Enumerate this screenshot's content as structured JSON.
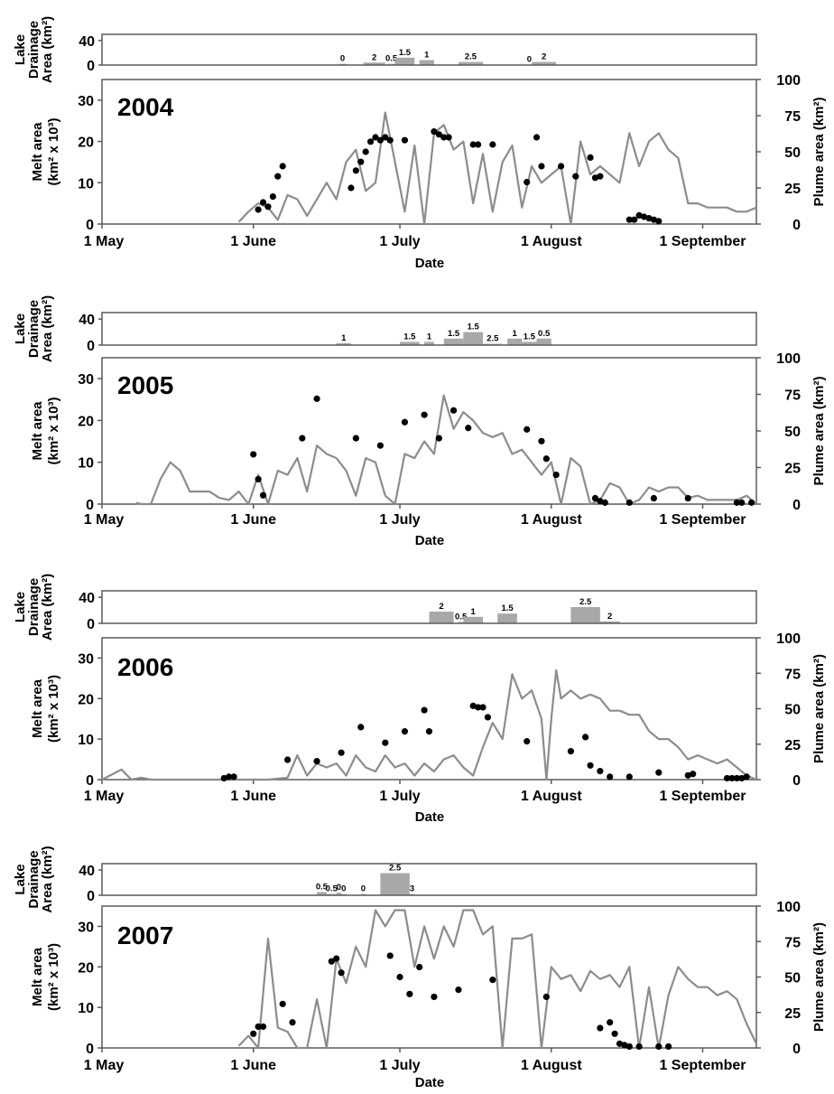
{
  "chart_data": [
    {
      "type": "line",
      "year_label": "2004",
      "xlabel": "Date",
      "ylabel_left": [
        "Melt area",
        "(km² x 10³)"
      ],
      "ylabel_right": "Plume area (km²)",
      "drainage_ylabel": [
        "Lake",
        "Drainage",
        "Area (km²)"
      ],
      "x_ticks": [
        "1 May",
        "1 June",
        "1 July",
        "1 August",
        "1 September"
      ],
      "ylim_left": [
        0,
        35
      ],
      "yticks_left": [
        0,
        10,
        20,
        30
      ],
      "ylim_right": [
        0,
        100
      ],
      "yticks_right": [
        0,
        25,
        50,
        75,
        100
      ],
      "drainage_ylim": [
        0,
        50
      ],
      "drainage_yticks": [
        0,
        40
      ],
      "melt_area": {
        "day": [
          28,
          30,
          32,
          34,
          36,
          38,
          40,
          42,
          44,
          46,
          48,
          50,
          52,
          54,
          56,
          58,
          60,
          62,
          64,
          66,
          68,
          70,
          72,
          74,
          76,
          78,
          80,
          82,
          84,
          86,
          88,
          90,
          92,
          94,
          96,
          98,
          100,
          102,
          104,
          106,
          108,
          110,
          112,
          114,
          116,
          118,
          120,
          122,
          124,
          126,
          128,
          130,
          132,
          134
        ],
        "value": [
          0.5,
          3,
          5,
          4,
          1,
          7,
          6,
          2,
          6,
          10,
          6,
          15,
          18,
          8,
          10,
          27,
          15,
          3,
          19,
          0,
          22,
          24,
          18,
          20,
          5,
          17,
          3,
          15,
          19,
          4,
          14,
          10,
          12,
          14,
          0,
          20,
          12,
          14,
          12,
          10,
          22,
          14,
          20,
          22,
          18,
          16,
          5,
          5,
          4,
          4,
          4,
          3,
          3,
          4
        ]
      },
      "plume_area": {
        "day": [
          32,
          33,
          34,
          35,
          36,
          37,
          51,
          52,
          53,
          54,
          55,
          56,
          57,
          58,
          59,
          62,
          68,
          69,
          70,
          71,
          76,
          77,
          80,
          87,
          89,
          90,
          94,
          97,
          100,
          101,
          102,
          108,
          109,
          110,
          111,
          112,
          113,
          114
        ],
        "value": [
          10,
          15,
          12,
          19,
          33,
          40,
          25,
          37,
          43,
          50,
          57,
          60,
          58,
          60,
          58,
          58,
          64,
          62,
          60,
          60,
          55,
          55,
          55,
          29,
          60,
          40,
          40,
          33,
          46,
          32,
          33,
          3,
          3,
          6,
          5,
          4,
          3,
          2
        ]
      },
      "drainage": [
        {
          "label": "0",
          "start": 48.5,
          "end": 50,
          "height": 2
        },
        {
          "label": "2",
          "start": 53.5,
          "end": 58,
          "height": 4
        },
        {
          "label": "0.5",
          "start": 58.5,
          "end": 60,
          "height": 2
        },
        {
          "label": "1.5",
          "start": 60,
          "end": 64,
          "height": 12
        },
        {
          "label": "1",
          "start": 65,
          "end": 68,
          "height": 8
        },
        {
          "label": "2.5",
          "start": 73,
          "end": 78,
          "height": 5
        },
        {
          "label": "0",
          "start": 87,
          "end": 88,
          "height": 0.5
        },
        {
          "label": "2",
          "start": 88,
          "end": 93,
          "height": 5
        }
      ]
    },
    {
      "type": "line",
      "year_label": "2005",
      "xlabel": "Date",
      "ylabel_left": [
        "Melt area",
        "(km² x 10³)"
      ],
      "ylabel_right": "Plume area (km²)",
      "drainage_ylabel": [
        "Lake",
        "Drainage",
        "Area (km²)"
      ],
      "x_ticks": [
        "1 May",
        "1 June",
        "1 July",
        "1 August",
        "1 September"
      ],
      "ylim_left": [
        0,
        35
      ],
      "yticks_left": [
        0,
        10,
        20,
        30
      ],
      "ylim_right": [
        0,
        100
      ],
      "yticks_right": [
        0,
        25,
        50,
        75,
        100
      ],
      "drainage_ylim": [
        0,
        50
      ],
      "drainage_yticks": [
        0,
        40
      ],
      "melt_area": {
        "day": [
          7,
          8,
          9,
          10,
          12,
          14,
          16,
          18,
          20,
          22,
          24,
          26,
          28,
          30,
          32,
          34,
          36,
          38,
          40,
          42,
          44,
          46,
          48,
          50,
          52,
          54,
          56,
          58,
          60,
          62,
          64,
          66,
          68,
          70,
          72,
          74,
          76,
          78,
          80,
          82,
          84,
          86,
          88,
          90,
          92,
          94,
          96,
          98,
          100,
          102,
          104,
          106,
          108,
          110,
          112,
          114,
          116,
          118,
          120,
          122,
          124,
          126,
          128,
          130,
          132,
          134
        ],
        "value": [
          0.3,
          0,
          0,
          0,
          6,
          10,
          8,
          3,
          3,
          3,
          1.5,
          1,
          3,
          0,
          7,
          0,
          8,
          7,
          11,
          3,
          14,
          12,
          11,
          8,
          2,
          11,
          10,
          2,
          0,
          12,
          11,
          15,
          12,
          26,
          18,
          22,
          20,
          17,
          16,
          17,
          12,
          13,
          10,
          7,
          10,
          0,
          11,
          9,
          0,
          1,
          5,
          4,
          0,
          1,
          4,
          3,
          4,
          4,
          1.5,
          2,
          1,
          1,
          1,
          1,
          2,
          0
        ]
      },
      "plume_area": {
        "day": [
          31,
          32,
          33,
          41,
          44,
          52,
          57,
          62,
          66,
          69,
          72,
          75,
          87,
          90,
          91,
          93,
          101,
          102,
          103,
          108,
          113,
          120,
          130,
          131,
          133
        ],
        "value": [
          34,
          17,
          6,
          45,
          72,
          45,
          40,
          56,
          61,
          45,
          64,
          52,
          51,
          43,
          31,
          20,
          4,
          2,
          1,
          1,
          4,
          4,
          1,
          1,
          1
        ]
      },
      "drainage": [
        {
          "label": "1",
          "start": 48,
          "end": 51,
          "height": 3
        },
        {
          "label": "1.5",
          "start": 61,
          "end": 65,
          "height": 5
        },
        {
          "label": "1",
          "start": 66,
          "end": 68,
          "height": 5
        },
        {
          "label": "1.5",
          "start": 70,
          "end": 74,
          "height": 10
        },
        {
          "label": "1.5",
          "start": 74,
          "end": 78,
          "height": 20
        },
        {
          "label": "2.5",
          "start": 78,
          "end": 82,
          "height": 2
        },
        {
          "label": "1",
          "start": 83,
          "end": 86,
          "height": 10
        },
        {
          "label": "1.5",
          "start": 86,
          "end": 89,
          "height": 5
        },
        {
          "label": "0.5",
          "start": 89,
          "end": 92,
          "height": 10
        }
      ]
    },
    {
      "type": "line",
      "year_label": "2006",
      "xlabel": "Date",
      "ylabel_left": [
        "Melt area",
        "(km² x 10³)"
      ],
      "ylabel_right": "Plume area (km²)",
      "drainage_ylabel": [
        "Lake",
        "Drainage",
        "Area (km²)"
      ],
      "x_ticks": [
        "1 May",
        "1 June",
        "1 July",
        "1 August",
        "1 September"
      ],
      "ylim_left": [
        0,
        35
      ],
      "yticks_left": [
        0,
        10,
        20,
        30
      ],
      "ylim_right": [
        0,
        100
      ],
      "yticks_right": [
        0,
        25,
        50,
        75,
        100
      ],
      "drainage_ylim": [
        0,
        50
      ],
      "drainage_yticks": [
        0,
        40
      ],
      "melt_area": {
        "day": [
          0,
          4,
          6,
          8,
          10,
          14,
          18,
          22,
          26,
          30,
          34,
          38,
          40,
          42,
          44,
          46,
          48,
          50,
          52,
          54,
          56,
          58,
          60,
          62,
          64,
          66,
          68,
          70,
          72,
          74,
          76,
          78,
          80,
          82,
          84,
          86,
          88,
          90,
          91,
          92,
          93,
          94,
          96,
          98,
          100,
          102,
          104,
          106,
          108,
          110,
          112,
          114,
          116,
          118,
          120,
          122,
          124,
          126,
          128,
          130,
          132,
          134
        ],
        "value": [
          0,
          2.5,
          0,
          0.5,
          0,
          0,
          0,
          0,
          0,
          0,
          0,
          0.5,
          6,
          1,
          4,
          3,
          4,
          1,
          6,
          3,
          2,
          6,
          3,
          4,
          1,
          4,
          2,
          5,
          6,
          3,
          1,
          8,
          14,
          10,
          26,
          20,
          22,
          15,
          0,
          15,
          27,
          20,
          22,
          20,
          21,
          20,
          17,
          17,
          16,
          16,
          12,
          10,
          10,
          8,
          5,
          6,
          5,
          4,
          5,
          3,
          1,
          0
        ]
      },
      "plume_area": {
        "day": [
          25,
          26,
          27,
          38,
          44,
          49,
          53,
          58,
          62,
          66,
          67,
          76,
          77,
          78,
          79,
          87,
          96,
          99,
          100,
          102,
          104,
          108,
          114,
          120,
          121,
          128,
          129,
          130,
          131,
          132
        ],
        "value": [
          1,
          2,
          2,
          14,
          13,
          19,
          37,
          26,
          34,
          49,
          34,
          52,
          51,
          51,
          44,
          27,
          20,
          30,
          10,
          6,
          2,
          2,
          5,
          3,
          4,
          1,
          1,
          1,
          1,
          2
        ]
      },
      "drainage": [
        {
          "label": "2",
          "start": 67,
          "end": 72,
          "height": 18
        },
        {
          "label": "0.5",
          "start": 73,
          "end": 74,
          "height": 2
        },
        {
          "label": "1",
          "start": 74,
          "end": 78,
          "height": 10
        },
        {
          "label": "1.5",
          "start": 81,
          "end": 85,
          "height": 15
        },
        {
          "label": "2.5",
          "start": 96,
          "end": 102,
          "height": 25
        },
        {
          "label": "2",
          "start": 102,
          "end": 106,
          "height": 3
        }
      ]
    },
    {
      "type": "line",
      "year_label": "2007",
      "xlabel": "Date",
      "ylabel_left": [
        "Melt area",
        "(km² x 10³)"
      ],
      "ylabel_right": "Plume area (km²)",
      "drainage_ylabel": [
        "Lake",
        "Drainage",
        "Area (km²)"
      ],
      "x_ticks": [
        "1 May",
        "1 June",
        "1 July",
        "1 August",
        "1 September"
      ],
      "ylim_left": [
        0,
        35
      ],
      "yticks_left": [
        0,
        10,
        20,
        30
      ],
      "ylim_right": [
        0,
        100
      ],
      "yticks_right": [
        0,
        25,
        50,
        75,
        100
      ],
      "drainage_ylim": [
        0,
        50
      ],
      "drainage_yticks": [
        0,
        40
      ],
      "melt_area": {
        "day": [
          28,
          30,
          32,
          34,
          36,
          38,
          40,
          42,
          44,
          46,
          48,
          50,
          52,
          54,
          56,
          58,
          60,
          62,
          64,
          66,
          68,
          70,
          72,
          74,
          76,
          78,
          80,
          82,
          84,
          86,
          88,
          90,
          92,
          94,
          96,
          98,
          100,
          102,
          104,
          106,
          108,
          110,
          112,
          114,
          116,
          118,
          120,
          122,
          124,
          126,
          128,
          130,
          132,
          134
        ],
        "value": [
          0.5,
          3,
          0,
          27,
          5,
          4,
          0,
          0,
          12,
          0,
          22,
          16,
          25,
          20,
          34,
          30,
          34,
          34,
          20,
          30,
          22,
          30,
          25,
          34,
          34,
          28,
          30,
          0,
          27,
          27,
          28,
          0,
          20,
          17,
          18,
          14,
          19,
          17,
          18,
          15,
          20,
          0,
          15,
          0,
          13,
          20,
          17,
          15,
          15,
          13,
          14,
          12,
          6,
          1
        ]
      },
      "plume_area": {
        "day": [
          31,
          32,
          33,
          37,
          39,
          47,
          48,
          49,
          59,
          61,
          63,
          65,
          68,
          73,
          80,
          91,
          102,
          104,
          105,
          106,
          107,
          108,
          110,
          114,
          116
        ],
        "value": [
          10,
          15,
          15,
          31,
          18,
          61,
          63,
          53,
          65,
          50,
          38,
          57,
          36,
          41,
          48,
          36,
          14,
          18,
          10,
          3,
          2,
          1,
          1,
          1,
          1
        ]
      },
      "drainage": [
        {
          "label": "0.5",
          "start": 44,
          "end": 46,
          "height": 5
        },
        {
          "label": "0.5",
          "start": 46,
          "end": 48,
          "height": 2
        },
        {
          "label": "0",
          "start": 48,
          "end": 49,
          "height": 4
        },
        {
          "label": "0",
          "start": 49,
          "end": 50,
          "height": 2
        },
        {
          "label": "0",
          "start": 53,
          "end": 54,
          "height": 2
        },
        {
          "label": "2.5",
          "start": 57,
          "end": 63,
          "height": 35
        },
        {
          "label": "3",
          "start": 63,
          "end": 64,
          "height": 2
        }
      ]
    }
  ]
}
